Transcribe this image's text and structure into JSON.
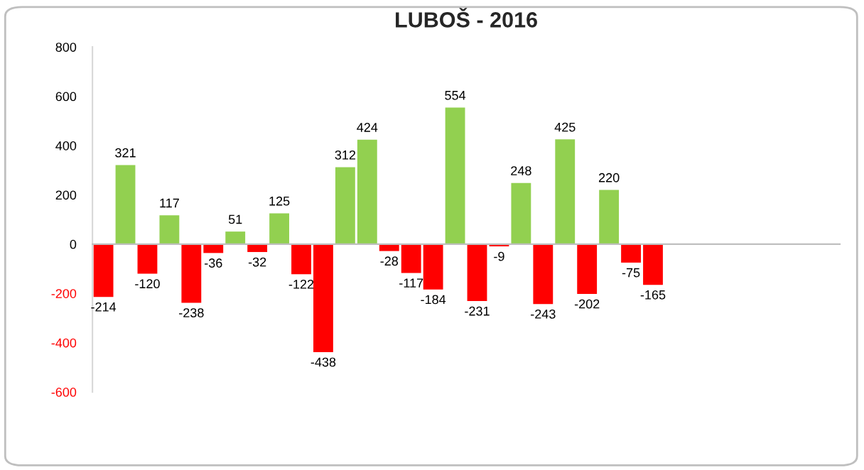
{
  "chart_data": {
    "type": "bar",
    "title": "LUBOŠ - 2016",
    "categories": [
      null,
      null,
      null,
      null,
      null,
      null,
      null,
      null,
      null,
      null,
      null,
      null,
      null,
      null,
      null,
      null,
      null,
      null,
      null,
      null,
      null,
      null,
      null,
      null,
      null,
      null,
      null,
      null,
      null,
      null,
      null,
      null,
      null,
      null
    ],
    "values": [
      -214,
      321,
      -120,
      117,
      -238,
      -36,
      51,
      -32,
      125,
      -122,
      -438,
      312,
      424,
      -28,
      -117,
      -184,
      554,
      -231,
      -9,
      248,
      -243,
      425,
      -202,
      220,
      -75,
      -165,
      null,
      null,
      null,
      null,
      null,
      null,
      null,
      null
    ],
    "colors": [
      "#ff0000",
      "#92d050",
      "#ff0000",
      "#92d050",
      "#ff0000",
      "#ff0000",
      "#92d050",
      "#ff0000",
      "#92d050",
      "#ff0000",
      "#ff0000",
      "#92d050",
      "#92d050",
      "#ff0000",
      "#ff0000",
      "#ff0000",
      "#92d050",
      "#ff0000",
      "#ff0000",
      "#92d050",
      "#ff0000",
      "#92d050",
      "#ff0000",
      "#92d050",
      "#ff0000",
      "#ff0000",
      "#92d050",
      "#92d050",
      "#92d050",
      "#92d050",
      "#92d050",
      "#92d050",
      "#92d050",
      "#92d050"
    ],
    "ylim": [
      -600,
      800
    ],
    "yticks": [
      -600,
      -400,
      -200,
      0,
      200,
      400,
      600,
      800
    ],
    "data_labels": true,
    "legend": false
  }
}
